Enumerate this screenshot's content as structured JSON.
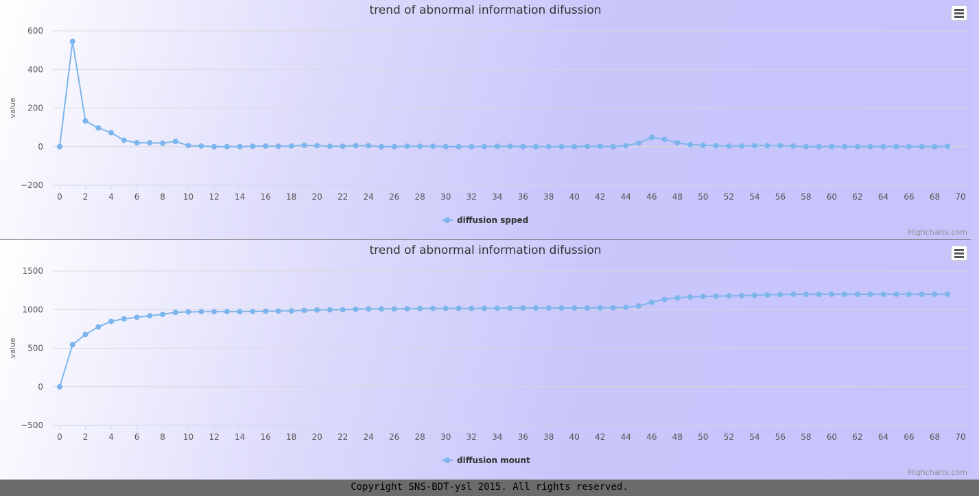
{
  "footer": {
    "copyright": "Copyright SNS-BDT-ysl 2015. All rights reserved."
  },
  "credits": "Highcharts.com",
  "colors": {
    "series": "#7cb5ec",
    "grid": "#d8d8d8",
    "text": "#333333"
  },
  "chart_data": [
    {
      "type": "line",
      "title": "trend of abnormal information difussion",
      "ylabel": "value",
      "xlabel": "",
      "ylim": [
        -200,
        600
      ],
      "yticks": [
        "600",
        "400",
        "200",
        "0",
        "−200"
      ],
      "xlim": [
        0,
        70
      ],
      "xticks": [
        "0",
        "2",
        "4",
        "6",
        "8",
        "10",
        "12",
        "14",
        "16",
        "18",
        "20",
        "22",
        "24",
        "26",
        "28",
        "30",
        "32",
        "34",
        "36",
        "38",
        "40",
        "42",
        "44",
        "46",
        "48",
        "50",
        "52",
        "54",
        "56",
        "58",
        "60",
        "62",
        "64",
        "66",
        "68",
        "70"
      ],
      "grid": true,
      "legend": "bottom-center",
      "series": [
        {
          "name": "diffusion spped",
          "values": [
            0,
            545,
            133,
            97,
            72,
            33,
            20,
            20,
            18,
            27,
            5,
            3,
            0,
            0,
            0,
            2,
            3,
            2,
            3,
            7,
            5,
            2,
            2,
            5,
            5,
            0,
            0,
            2,
            2,
            2,
            0,
            0,
            0,
            0,
            2,
            2,
            0,
            0,
            0,
            0,
            0,
            2,
            2,
            0,
            5,
            18,
            48,
            38,
            20,
            10,
            7,
            5,
            3,
            3,
            5,
            5,
            5,
            3,
            0,
            0,
            0,
            0,
            0,
            0,
            0,
            0,
            0,
            0,
            0,
            2
          ]
        }
      ]
    },
    {
      "type": "line",
      "title": "trend of abnormal information difussion",
      "ylabel": "value",
      "xlabel": "",
      "ylim": [
        -500,
        1500
      ],
      "yticks": [
        "1500",
        "1000",
        "500",
        "0",
        "−500"
      ],
      "xlim": [
        0,
        70
      ],
      "xticks": [
        "0",
        "2",
        "4",
        "6",
        "8",
        "10",
        "12",
        "14",
        "16",
        "18",
        "20",
        "22",
        "24",
        "26",
        "28",
        "30",
        "32",
        "34",
        "36",
        "38",
        "40",
        "42",
        "44",
        "46",
        "48",
        "50",
        "52",
        "54",
        "56",
        "58",
        "60",
        "62",
        "64",
        "66",
        "68",
        "70"
      ],
      "grid": true,
      "legend": "bottom-center",
      "series": [
        {
          "name": "diffusion mount",
          "values": [
            0,
            545,
            678,
            775,
            847,
            880,
            900,
            920,
            938,
            965,
            970,
            973,
            973,
            973,
            973,
            975,
            978,
            980,
            983,
            990,
            995,
            997,
            999,
            1004,
            1009,
            1009,
            1009,
            1011,
            1013,
            1015,
            1015,
            1015,
            1015,
            1015,
            1017,
            1019,
            1019,
            1019,
            1019,
            1019,
            1019,
            1021,
            1023,
            1023,
            1028,
            1046,
            1094,
            1132,
            1152,
            1162,
            1169,
            1174,
            1177,
            1180,
            1185,
            1190,
            1195,
            1198,
            1198,
            1198,
            1198,
            1198,
            1198,
            1198,
            1198,
            1198,
            1198,
            1198,
            1198,
            1200
          ]
        }
      ]
    }
  ]
}
